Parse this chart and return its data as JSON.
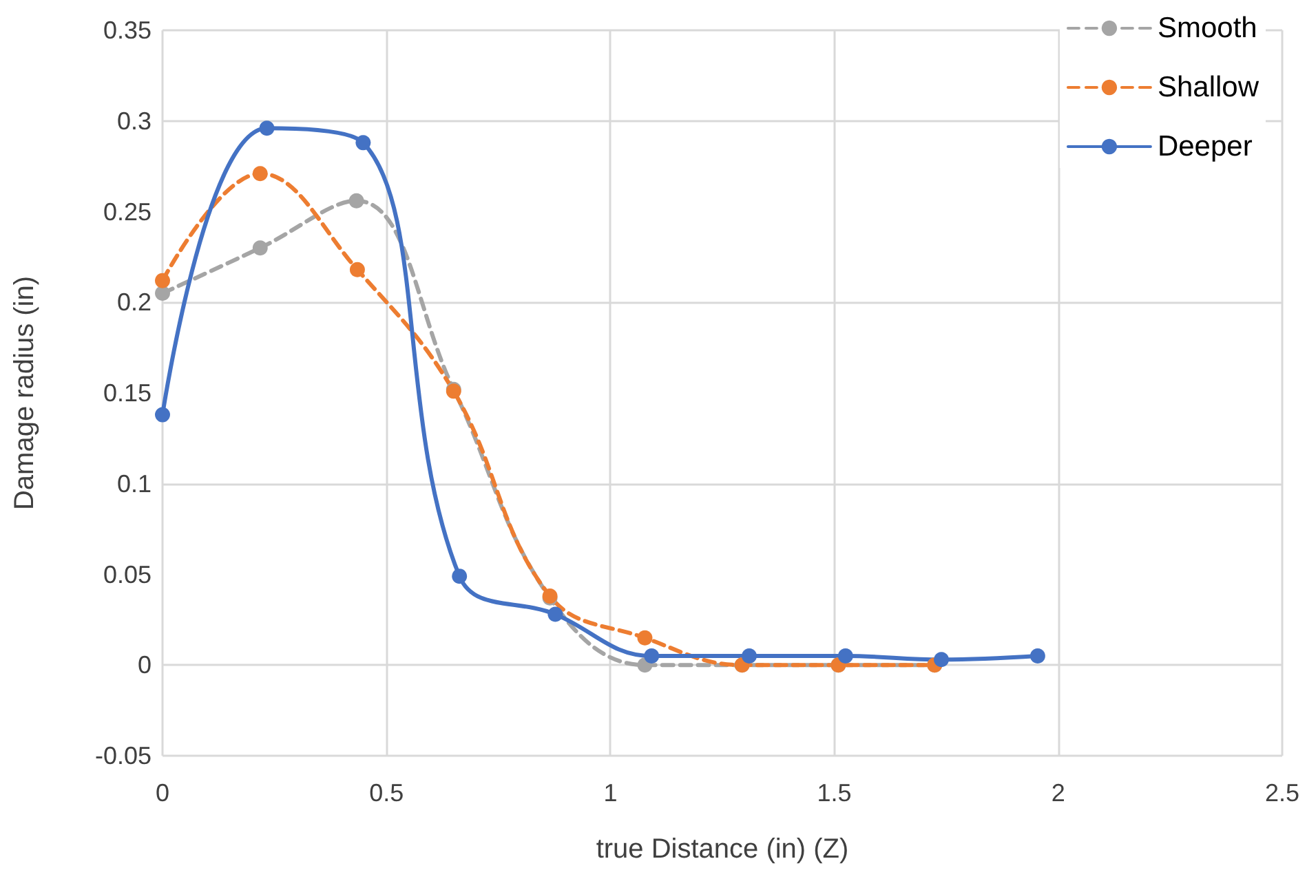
{
  "chart_data": {
    "type": "line",
    "xlabel": "true Distance (in) (Z)",
    "ylabel": "Damage radius (in)",
    "xlim": [
      0,
      2.5
    ],
    "xticks": [
      0,
      0.5,
      1,
      1.5,
      2,
      2.5
    ],
    "ylim": [
      -0.05,
      0.35
    ],
    "yticks": [
      -0.05,
      0,
      0.05,
      0.1,
      0.15,
      0.2,
      0.25,
      0.3,
      0.35
    ],
    "grid": true,
    "legend": "top right",
    "marker": "circle",
    "series": [
      {
        "name": "Smooth",
        "color": "#a5a5a5",
        "line_style": "dashed",
        "x": [
          0,
          0.218,
          0.433,
          0.65,
          0.865,
          1.077,
          1.294,
          1.509,
          1.724
        ],
        "values": [
          0.205,
          0.23,
          0.256,
          0.152,
          0.037,
          0,
          0,
          0,
          0
        ]
      },
      {
        "name": "Shallow",
        "color": "#ed7d31",
        "line_style": "dashed",
        "x": [
          0,
          0.218,
          0.435,
          0.65,
          0.865,
          1.077,
          1.294,
          1.509,
          1.724
        ],
        "values": [
          0.212,
          0.271,
          0.218,
          0.151,
          0.038,
          0.015,
          0,
          0,
          0
        ]
      },
      {
        "name": "Deeper",
        "color": "#4472c4",
        "line_style": "solid",
        "x": [
          0,
          0.233,
          0.448,
          0.663,
          0.877,
          1.092,
          1.31,
          1.525,
          1.739,
          1.954
        ],
        "values": [
          0.138,
          0.296,
          0.288,
          0.049,
          0.028,
          0.005,
          0.005,
          0.005,
          0.003,
          0.005
        ]
      }
    ]
  }
}
